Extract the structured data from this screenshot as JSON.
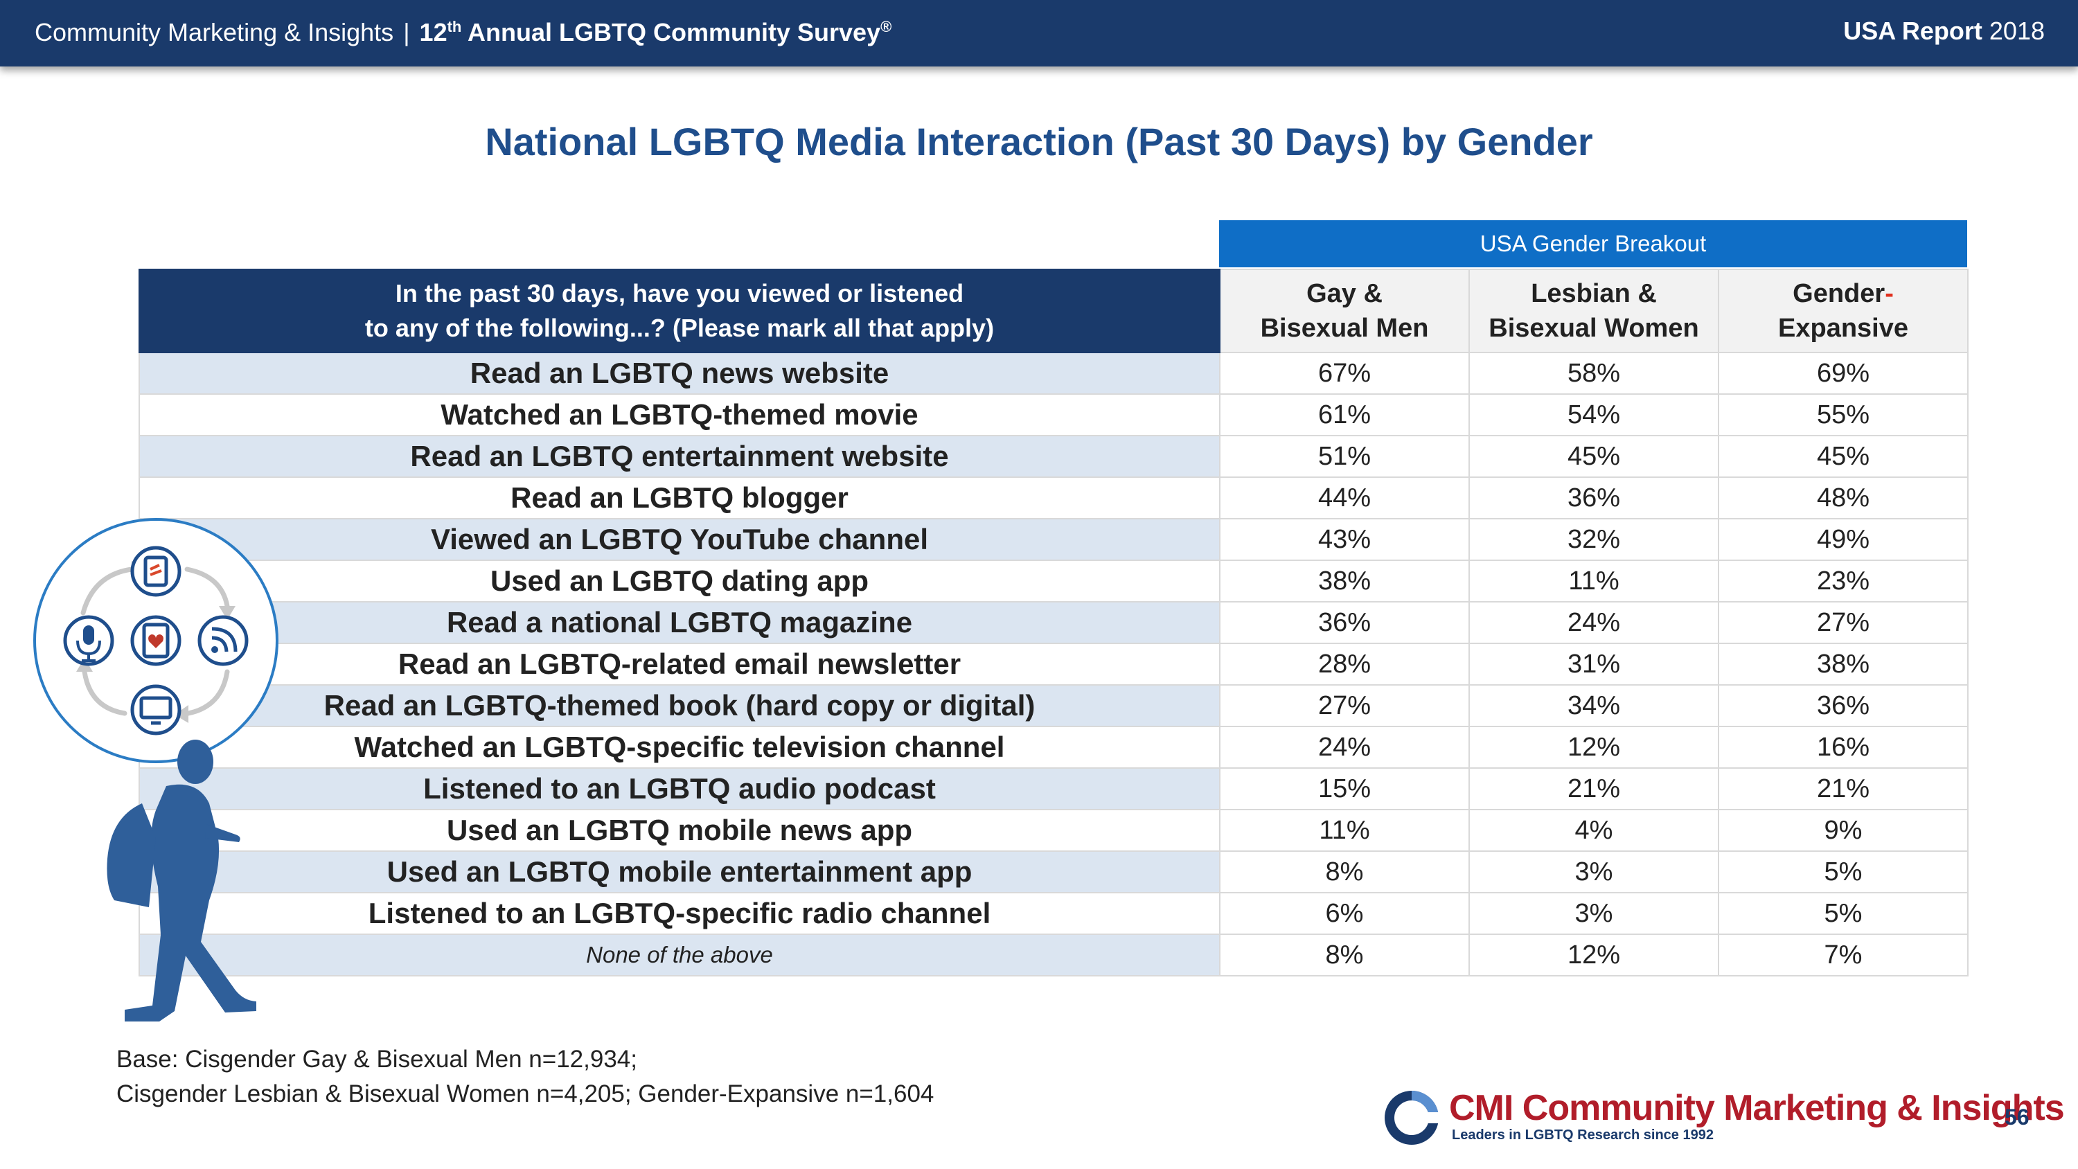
{
  "header": {
    "left_brand": "Community Marketing & Insights",
    "separator": "|",
    "survey_ordinal": "12",
    "survey_ordinal_suffix": "th",
    "survey_name": "Annual LGBTQ Community Survey",
    "survey_mark": "®",
    "report_label": "USA Report",
    "report_year": "2018"
  },
  "title": "National LGBTQ Media Interaction (Past 30 Days) by Gender",
  "table": {
    "breakout_label": "USA Gender Breakout",
    "question_line1": "In the past 30 days, have you viewed or listened",
    "question_line2": "to any of the following...?  (Please mark all that apply)",
    "columns": [
      {
        "line1": "Gay &",
        "line2": "Bisexual Men"
      },
      {
        "line1": "Lesbian &",
        "line2": "Bisexual Women"
      },
      {
        "line1": "Gender",
        "hyphen": "-",
        "line2": "Expansive"
      }
    ],
    "rows": [
      {
        "label": "Read an LGBTQ news website",
        "values": [
          "67%",
          "58%",
          "69%"
        ]
      },
      {
        "label": "Watched an LGBTQ-themed movie",
        "values": [
          "61%",
          "54%",
          "55%"
        ]
      },
      {
        "label": "Read an LGBTQ entertainment website",
        "values": [
          "51%",
          "45%",
          "45%"
        ]
      },
      {
        "label": "Read an LGBTQ blogger",
        "values": [
          "44%",
          "36%",
          "48%"
        ]
      },
      {
        "label": "Viewed an LGBTQ YouTube channel",
        "values": [
          "43%",
          "32%",
          "49%"
        ]
      },
      {
        "label": "Used an LGBTQ dating app",
        "values": [
          "38%",
          "11%",
          "23%"
        ]
      },
      {
        "label": "Read a national LGBTQ magazine",
        "values": [
          "36%",
          "24%",
          "27%"
        ]
      },
      {
        "label": "Read an LGBTQ-related email newsletter",
        "values": [
          "28%",
          "31%",
          "38%"
        ]
      },
      {
        "label": "Read an LGBTQ-themed book (hard copy or digital)",
        "values": [
          "27%",
          "34%",
          "36%"
        ]
      },
      {
        "label": "Watched an LGBTQ-specific television channel",
        "values": [
          "24%",
          "12%",
          "16%"
        ]
      },
      {
        "label": "Listened to an LGBTQ audio podcast",
        "values": [
          "15%",
          "21%",
          "21%"
        ]
      },
      {
        "label": "Used an LGBTQ mobile news app",
        "values": [
          "11%",
          "4%",
          "9%"
        ]
      },
      {
        "label": "Used an LGBTQ mobile entertainment app",
        "values": [
          "8%",
          "3%",
          "5%"
        ]
      },
      {
        "label": "Listened to an LGBTQ-specific radio channel",
        "values": [
          "6%",
          "3%",
          "5%"
        ]
      },
      {
        "label": "None of the above",
        "values": [
          "8%",
          "12%",
          "7%"
        ]
      }
    ]
  },
  "base_note": {
    "line1": "Base: Cisgender Gay & Bisexual Men n=12,934;",
    "line2": "Cisgender Lesbian & Bisexual Women n=4,205; Gender-Expansive n=1,604"
  },
  "logo": {
    "abbr": "CMI",
    "name": "Community Marketing & Insights",
    "tagline": "Leaders in LGBTQ Research since 1992"
  },
  "page_number": "56",
  "colors": {
    "navy": "#1a3a6b",
    "accent_blue": "#0f6ec6",
    "row_shade": "#dbe5f1",
    "brand_red": "#b11d2a"
  },
  "icons": [
    "tablet-icon",
    "microphone-icon",
    "heart-phone-icon",
    "rss-icon",
    "monitor-icon",
    "walking-person-icon"
  ]
}
